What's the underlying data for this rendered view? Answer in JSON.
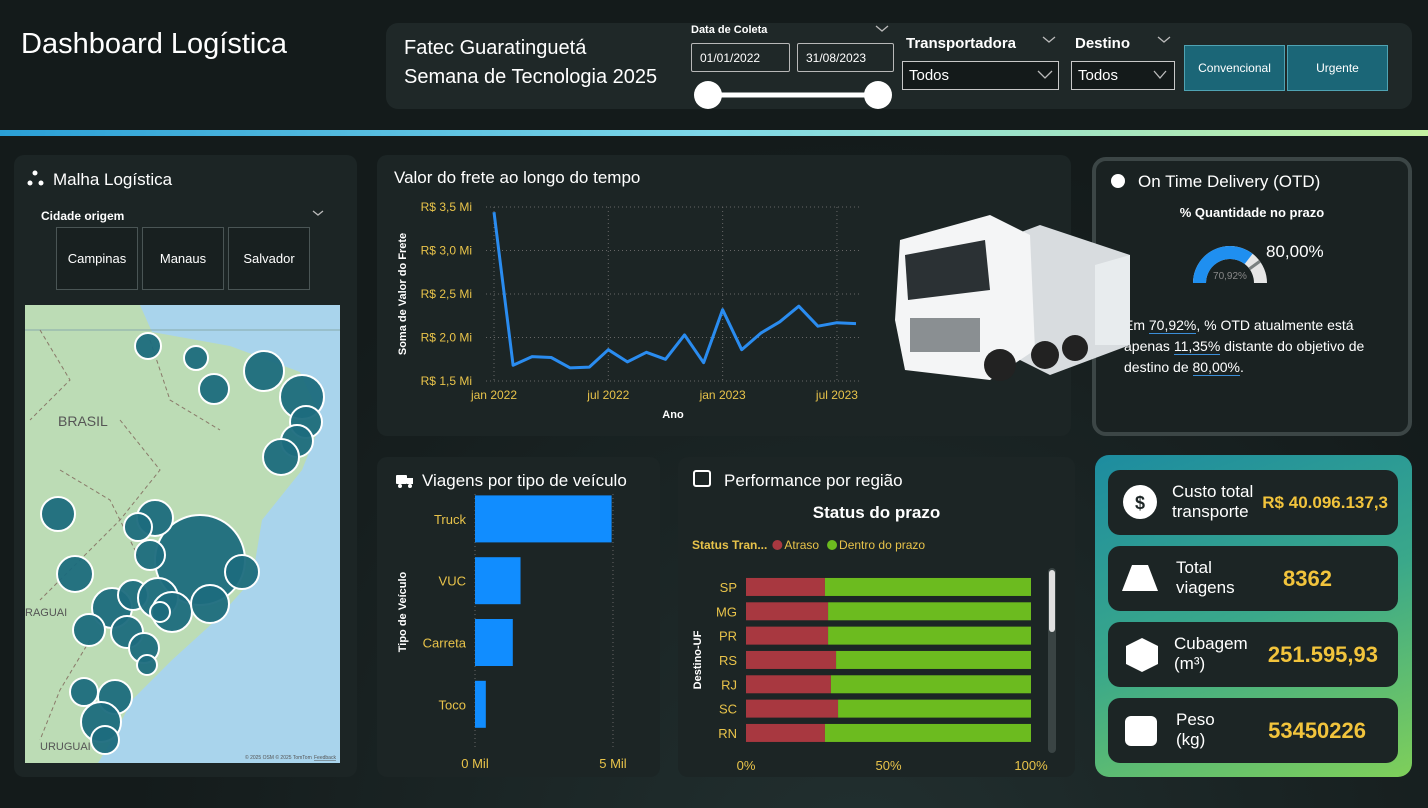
{
  "header": {
    "title": "Dashboard Logística",
    "org": [
      "Fatec Guaratinguetá",
      "Semana de Tecnologia 2025"
    ]
  },
  "filters": {
    "date_label": "Data de Coleta",
    "date_start": "01/01/2022",
    "date_end": "31/08/2023",
    "carrier_label": "Transportadora",
    "carrier_value": "Todos",
    "destination_label": "Destino",
    "destination_value": "Todos",
    "buttons": [
      "Convencional",
      "Urgente"
    ]
  },
  "map": {
    "title": "Malha Logística",
    "slicer_label": "Cidade origem",
    "cities": [
      "Campinas",
      "Manaus",
      "Salvador"
    ],
    "labels": [
      "BRASIL",
      "RAGUAI",
      "URUGUAI"
    ],
    "attribution": "© 2025 OSM © 2025 TomTom",
    "feedback": "Feedback"
  },
  "chart_data": [
    {
      "type": "line",
      "title": "Valor do frete ao longo do tempo",
      "y_label": "Soma de Valor do Frete",
      "x_label": "Ano",
      "x": [
        "2022-01",
        "2022-02",
        "2022-03",
        "2022-04",
        "2022-05",
        "2022-06",
        "2022-07",
        "2022-08",
        "2022-09",
        "2022-10",
        "2022-11",
        "2022-12",
        "2023-01",
        "2023-02",
        "2023-03",
        "2023-04",
        "2023-05",
        "2023-06",
        "2023-07",
        "2023-08"
      ],
      "values": [
        3.44,
        1.68,
        1.78,
        1.77,
        1.65,
        1.66,
        1.86,
        1.72,
        1.83,
        1.75,
        2.03,
        1.71,
        2.32,
        1.86,
        2.05,
        2.18,
        2.36,
        2.13,
        2.17,
        2.16
      ],
      "color": "#2a8cf0",
      "xlim": [
        "2022-01",
        "2023-08"
      ],
      "xticks": [
        {
          "value": "2022-01",
          "label": "jan 2022"
        },
        {
          "value": "2022-07",
          "label": "jul 2022"
        },
        {
          "value": "2023-01",
          "label": "jan 2023"
        },
        {
          "value": "2023-07",
          "label": "jul 2023"
        }
      ],
      "ylim": [
        1.5,
        3.5
      ],
      "yticks": [
        {
          "value": 1.5,
          "label": "R$ 1,5 Mi"
        },
        {
          "value": 2,
          "label": "R$ 2,0 Mi"
        },
        {
          "value": 2.5,
          "label": "R$ 2,5 Mi"
        },
        {
          "value": 3,
          "label": "R$ 3,0 Mi"
        },
        {
          "value": 3.5,
          "label": "R$ 3,5 Mi"
        }
      ],
      "grid": true
    },
    {
      "type": "bar",
      "orientation": "horizontal",
      "title": "Viagens por tipo de veículo",
      "y_label": "Tipo de Veículo",
      "categories": [
        "Truck",
        "VUC",
        "Carreta",
        "Toco"
      ],
      "values": [
        4950,
        1650,
        1370,
        392
      ],
      "color": "#118dff",
      "xlim": [
        0,
        5200
      ],
      "xticks": [
        {
          "value": 0,
          "label": "0 Mil"
        },
        {
          "value": 5000,
          "label": "5 Mil"
        }
      ],
      "grid": true
    },
    {
      "type": "bar",
      "orientation": "horizontal",
      "stacked": true,
      "panel_title": "Performance por região",
      "title": "Status do prazo",
      "legend_title": "Status Tran...",
      "y_label": "Destino-UF",
      "categories": [
        "SP",
        "MG",
        "PR",
        "RS",
        "RJ",
        "SC",
        "RN"
      ],
      "series": [
        {
          "name": "Atraso",
          "color": "#a83840",
          "values": [
            27.7,
            28.8,
            28.8,
            31.6,
            29.8,
            32.3,
            27.7
          ]
        },
        {
          "name": "Dentro do prazo",
          "color": "#6cbb1f",
          "values": [
            72.3,
            71.2,
            71.2,
            68.4,
            70.2,
            67.7,
            72.3
          ]
        }
      ],
      "xlim": [
        0,
        100
      ],
      "xticks": [
        {
          "value": 0,
          "label": "0%"
        },
        {
          "value": 50,
          "label": "50%"
        },
        {
          "value": 100,
          "label": "100%"
        }
      ]
    },
    {
      "type": "gauge",
      "title": "On Time Delivery (OTD)",
      "subtitle": "% Quantidade no prazo",
      "value": 70.92,
      "value_label": "70,92%",
      "target": 80,
      "target_label": "80,00%",
      "range": [
        0,
        100
      ],
      "color": "#1f8ff0"
    }
  ],
  "otd_text": [
    "Em ",
    "70,92%",
    ", % OTD atualmente está apenas ",
    "11,35%",
    " distante do objetivo de destino de ",
    "80,00%",
    "."
  ],
  "kpis": [
    {
      "label": "Custo total transporte",
      "value": "R$ 40.096.137,3"
    },
    {
      "label": "Total viagens",
      "value": "8362"
    },
    {
      "label": "Cubagem (m³)",
      "value": "251.595,93"
    },
    {
      "label": "Peso (kg)",
      "value": "53450226"
    }
  ]
}
